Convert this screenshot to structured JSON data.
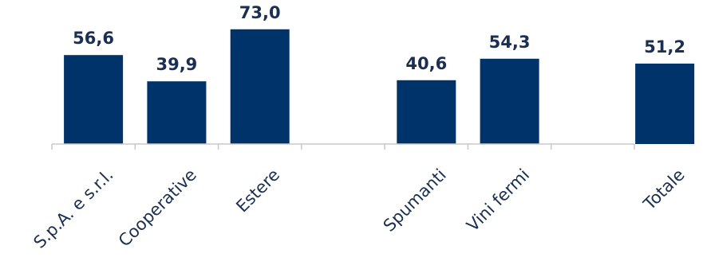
{
  "chart_data": {
    "type": "bar",
    "categories": [
      "S.p.A. e s.r.l.",
      "Cooperative",
      "Estere",
      "",
      "Spumanti",
      "Vini fermi",
      "",
      "Totale"
    ],
    "values": [
      56.6,
      39.9,
      73.0,
      null,
      40.6,
      54.3,
      null,
      51.2
    ],
    "value_labels": [
      "56,6",
      "39,9",
      "73,0",
      "",
      "40,6",
      "54,3",
      "",
      "51,2"
    ],
    "bar_color": "#00336a",
    "axis_color": "#c8c8c8",
    "text_color": "#1a2f52",
    "title": "",
    "xlabel": "",
    "ylabel": "",
    "ylim": [
      0,
      80
    ],
    "grid": false,
    "legend": "none"
  }
}
